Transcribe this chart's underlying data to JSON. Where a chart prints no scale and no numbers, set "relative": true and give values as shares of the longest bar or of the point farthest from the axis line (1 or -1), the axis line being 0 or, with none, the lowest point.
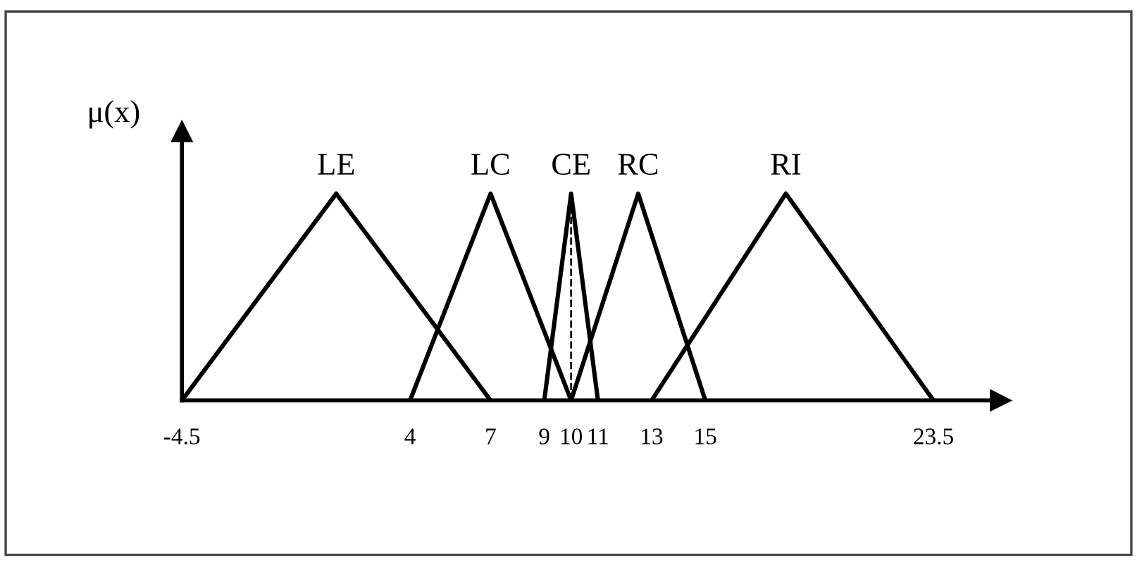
{
  "chart_data": {
    "type": "line",
    "relative": true,
    "ylabel": "μ(x)",
    "series": [
      {
        "name": "LE",
        "color": "#000000",
        "x": [
          -4.5,
          1.25,
          7
        ],
        "values": [
          0,
          1,
          0
        ]
      },
      {
        "name": "LC",
        "color": "#000000",
        "x": [
          4,
          7,
          10
        ],
        "values": [
          0,
          1,
          0
        ]
      },
      {
        "name": "CE",
        "color": "#000000",
        "x": [
          9,
          10,
          11
        ],
        "values": [
          0,
          1,
          0
        ]
      },
      {
        "name": "RC",
        "color": "#000000",
        "x": [
          10,
          12.5,
          15
        ],
        "values": [
          0,
          1,
          0
        ]
      },
      {
        "name": "RI",
        "color": "#000000",
        "x": [
          13,
          18,
          23.5
        ],
        "values": [
          0,
          1,
          0
        ]
      }
    ],
    "xlim": [
      -4.5,
      26
    ],
    "xticks": [
      -4.5,
      4,
      7,
      9,
      10,
      11,
      13,
      15,
      23.5
    ],
    "ref_lines": [
      {
        "axis": "x",
        "value": 10,
        "line_style": "dashed",
        "color": "#000000"
      }
    ],
    "grid": false,
    "legend": false,
    "marker": "none",
    "line_style": "solid"
  }
}
